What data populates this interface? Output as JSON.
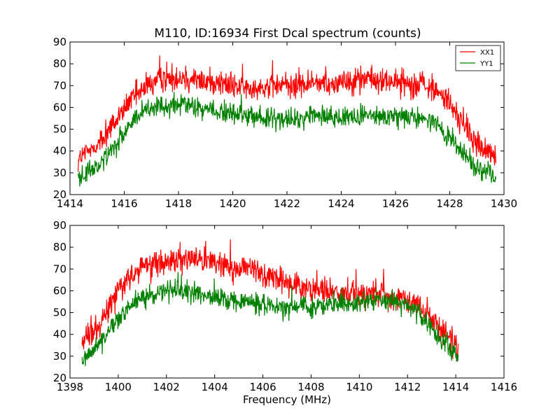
{
  "colors": {
    "xx1": "#ff0000",
    "yy1": "#008000"
  },
  "chart_data": [
    {
      "type": "line",
      "title": "M110, ID:16934 First Dcal spectrum (counts)",
      "xlabel": "",
      "ylabel": "",
      "xlim": [
        1414,
        1430
      ],
      "ylim": [
        20,
        90
      ],
      "xticks": [
        "1414",
        "1416",
        "1418",
        "1420",
        "1422",
        "1424",
        "1426",
        "1428",
        "1430"
      ],
      "yticks": [
        "20",
        "30",
        "40",
        "50",
        "60",
        "70",
        "80",
        "90"
      ],
      "legend": {
        "position": "top-right",
        "entries": [
          "XX1",
          "YY1"
        ]
      },
      "series": [
        {
          "name": "XX1",
          "x": [
            1414.3,
            1415,
            1415.5,
            1416,
            1416.5,
            1417,
            1417.5,
            1418,
            1418.5,
            1419,
            1419.5,
            1420,
            1420.5,
            1421,
            1421.5,
            1422,
            1422.5,
            1423,
            1423.5,
            1424,
            1424.5,
            1425,
            1425.5,
            1426,
            1426.5,
            1427,
            1427.5,
            1428,
            1428.5,
            1429,
            1429.7
          ],
          "values": [
            36,
            43,
            51,
            59,
            66,
            71,
            73,
            74,
            73,
            72,
            71,
            70,
            69,
            69,
            70,
            70,
            70,
            71,
            71,
            72,
            73,
            73,
            72,
            72,
            71,
            70,
            68,
            62,
            52,
            43,
            37
          ],
          "noise": 5
        },
        {
          "name": "YY1",
          "x": [
            1414.3,
            1415,
            1415.5,
            1416,
            1416.5,
            1417,
            1417.5,
            1418,
            1418.5,
            1419,
            1419.5,
            1420,
            1420.5,
            1421,
            1421.5,
            1422,
            1422.5,
            1423,
            1423.5,
            1424,
            1424.5,
            1425,
            1425.5,
            1426,
            1426.5,
            1427,
            1427.5,
            1428,
            1428.5,
            1429,
            1429.7
          ],
          "values": [
            28,
            33,
            40,
            48,
            56,
            59,
            61,
            61,
            60,
            59,
            58,
            57,
            56,
            55,
            55,
            54,
            55,
            56,
            56,
            56,
            56,
            56,
            55,
            56,
            56,
            55,
            52,
            46,
            39,
            32,
            28
          ],
          "noise": 4
        }
      ]
    },
    {
      "type": "line",
      "title": "",
      "xlabel": "Frequency (MHz)",
      "ylabel": "",
      "xlim": [
        1398,
        1416
      ],
      "ylim": [
        20,
        90
      ],
      "xticks": [
        "1398",
        "1400",
        "1402",
        "1404",
        "1406",
        "1408",
        "1410",
        "1412",
        "1414",
        "1416"
      ],
      "yticks": [
        "20",
        "30",
        "40",
        "50",
        "60",
        "70",
        "80",
        "90"
      ],
      "series": [
        {
          "name": "XX1",
          "x": [
            1398.5,
            1399,
            1399.5,
            1400,
            1400.5,
            1401,
            1401.5,
            1402,
            1402.5,
            1403,
            1403.5,
            1404,
            1404.5,
            1405,
            1405.5,
            1406,
            1406.5,
            1407,
            1407.5,
            1408,
            1408.5,
            1409,
            1409.5,
            1410,
            1410.5,
            1411,
            1411.5,
            1412,
            1412.5,
            1413,
            1413.5,
            1414.1
          ],
          "values": [
            36,
            42,
            51,
            60,
            66,
            70,
            72,
            73,
            74,
            75,
            75,
            73,
            71,
            70,
            69,
            68,
            66,
            64,
            62,
            61,
            60,
            59,
            58,
            58,
            58,
            58,
            57,
            56,
            54,
            47,
            40,
            34
          ],
          "noise": 5
        },
        {
          "name": "YY1",
          "x": [
            1398.5,
            1399,
            1399.5,
            1400,
            1400.5,
            1401,
            1401.5,
            1402,
            1402.5,
            1403,
            1403.5,
            1404,
            1404.5,
            1405,
            1405.5,
            1406,
            1406.5,
            1407,
            1407.5,
            1408,
            1408.5,
            1409,
            1409.5,
            1410,
            1410.5,
            1411,
            1411.5,
            1412,
            1412.5,
            1413,
            1413.5,
            1414.1
          ],
          "values": [
            29,
            33,
            40,
            48,
            53,
            57,
            59,
            60,
            60,
            59,
            58,
            57,
            56,
            55,
            55,
            54,
            53,
            52,
            52,
            52,
            53,
            54,
            54,
            55,
            55,
            55,
            55,
            53,
            50,
            43,
            37,
            30
          ],
          "noise": 4
        }
      ]
    }
  ]
}
